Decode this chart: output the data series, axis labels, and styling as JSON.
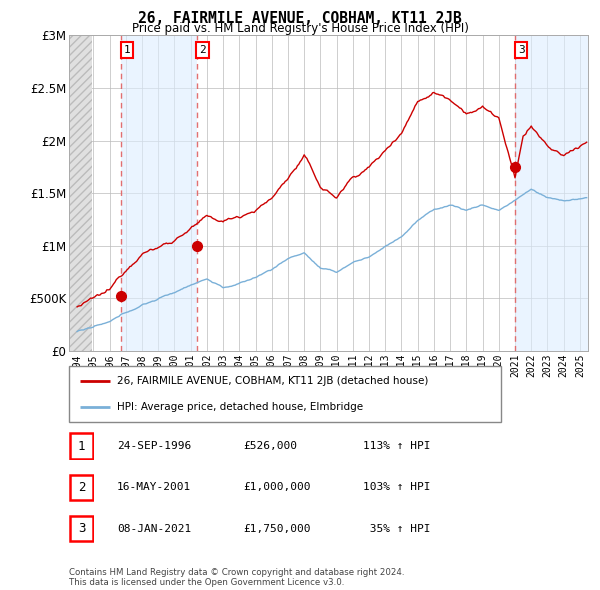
{
  "title": "26, FAIRMILE AVENUE, COBHAM, KT11 2JB",
  "subtitle": "Price paid vs. HM Land Registry's House Price Index (HPI)",
  "footer": "Contains HM Land Registry data © Crown copyright and database right 2024.\nThis data is licensed under the Open Government Licence v3.0.",
  "legend_line1": "26, FAIRMILE AVENUE, COBHAM, KT11 2JB (detached house)",
  "legend_line2": "HPI: Average price, detached house, Elmbridge",
  "transactions": [
    {
      "num": 1,
      "date": "24-SEP-1996",
      "price": 526000,
      "hpi_pct": "113%",
      "year": 1996.73
    },
    {
      "num": 2,
      "date": "16-MAY-2001",
      "price": 1000000,
      "hpi_pct": "103%",
      "year": 2001.37
    },
    {
      "num": 3,
      "date": "08-JAN-2021",
      "price": 1750000,
      "hpi_pct": "35%",
      "year": 2021.02
    }
  ],
  "hpi_color": "#7ab0d8",
  "price_color": "#cc0000",
  "dashed_color": "#e06060",
  "marker_color": "#cc0000",
  "shade_color": "#ddeeff",
  "hatch_color": "#d0d0d0",
  "bg_color": "#ffffff",
  "ylim": [
    0,
    3000000
  ],
  "xlim_start": 1993.5,
  "xlim_end": 2025.5,
  "yticks": [
    0,
    500000,
    1000000,
    1500000,
    2000000,
    2500000,
    3000000
  ],
  "xtick_years": [
    1994,
    1995,
    1996,
    1997,
    1998,
    1999,
    2000,
    2001,
    2002,
    2003,
    2004,
    2005,
    2006,
    2007,
    2008,
    2009,
    2010,
    2011,
    2012,
    2013,
    2014,
    2015,
    2016,
    2017,
    2018,
    2019,
    2020,
    2021,
    2022,
    2023,
    2024,
    2025
  ],
  "trans_years": [
    1996.73,
    2001.37,
    2021.02
  ],
  "trans_prices": [
    526000,
    1000000,
    1750000
  ]
}
